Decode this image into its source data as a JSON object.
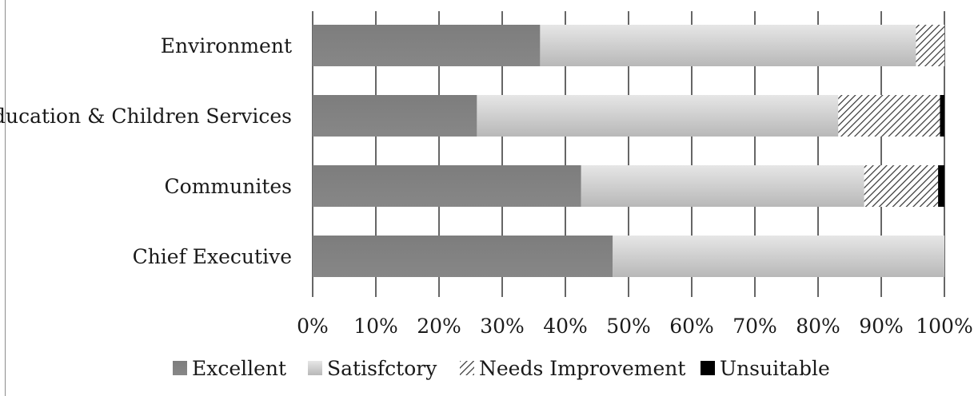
{
  "chart_data": {
    "type": "bar",
    "orientation": "horizontal",
    "stacked": "percent",
    "categories": [
      "Chief Executive",
      "Communites",
      "Education & Children Services",
      "Environment"
    ],
    "series": [
      {
        "name": "Excellent",
        "values": [
          47.5,
          42.5,
          26.0,
          36.0
        ]
      },
      {
        "name": "Satisfctory",
        "values": [
          52.5,
          44.8,
          57.2,
          59.5
        ]
      },
      {
        "name": "Needs Improvement",
        "values": [
          0.0,
          11.7,
          16.1,
          4.5
        ]
      },
      {
        "name": "Unsuitable",
        "values": [
          0.0,
          1.0,
          0.7,
          0.0
        ]
      }
    ],
    "xlim": [
      0,
      100
    ],
    "x_ticks": [
      "0%",
      "10%",
      "20%",
      "30%",
      "40%",
      "50%",
      "60%",
      "70%",
      "80%",
      "90%",
      "100%"
    ],
    "grid": "vertical",
    "legend_position": "bottom",
    "colors": {
      "Excellent": "#808080",
      "Satisfctory": "#cfcfcf",
      "Needs Improvement": "hatch",
      "Unsuitable": "#000000"
    }
  }
}
